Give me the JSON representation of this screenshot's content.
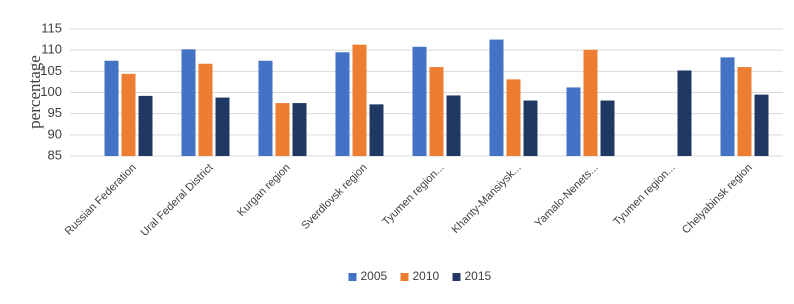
{
  "chart_data": {
    "type": "bar",
    "y_label": "percentage",
    "categories": [
      "Russian Federation",
      "Ural Federal District",
      "Kurgan region",
      "Sverdlovsk region",
      "Tyumen region...",
      "Khanty-Mansiysk...",
      "Yamalo-Nenets...",
      "Tyumen region...",
      "Chelyabinsk region"
    ],
    "series": [
      {
        "name": "2005",
        "color": "#4472c4",
        "values": [
          107.5,
          110.2,
          107.5,
          109.5,
          110.8,
          112.5,
          101.2,
          null,
          108.3
        ]
      },
      {
        "name": "2010",
        "color": "#ed7d31",
        "values": [
          104.4,
          106.8,
          97.5,
          111.3,
          106,
          103.1,
          110.1,
          null,
          106
        ]
      },
      {
        "name": "2015",
        "color": "#203864",
        "values": [
          99.2,
          98.8,
          97.5,
          97.2,
          99.3,
          98.1,
          98.1,
          105.2,
          99.5
        ]
      }
    ],
    "ylim": [
      85,
      115
    ],
    "yticks": [
      85,
      90,
      95,
      100,
      105,
      110,
      115
    ],
    "grid": true,
    "legend": "bottom"
  }
}
